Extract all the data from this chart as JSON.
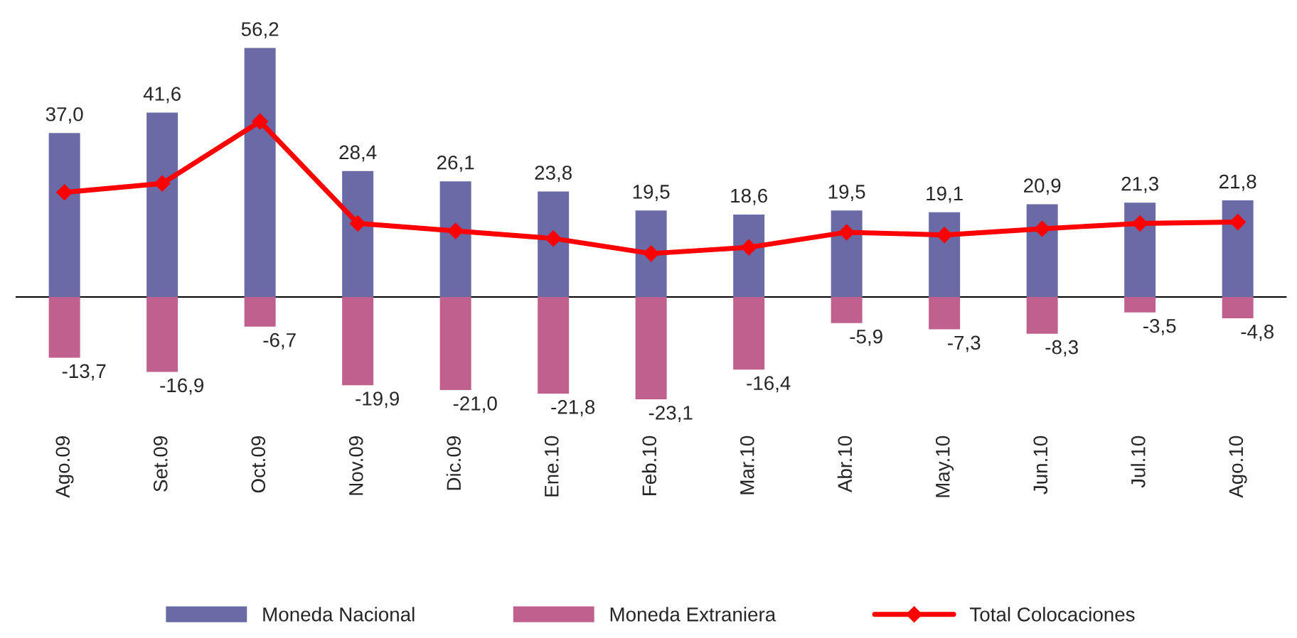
{
  "chart_data": {
    "type": "bar",
    "categories": [
      "Ago.09",
      "Set.09",
      "Oct.09",
      "Nov.09",
      "Dic.09",
      "Ene.10",
      "Feb.10",
      "Mar.10",
      "Abr.10",
      "May.10",
      "Jun.10",
      "Jul.10",
      "Ago.10"
    ],
    "series": [
      {
        "name": "Moneda Nacional",
        "color": "#6a6aa6",
        "values": [
          37.0,
          41.6,
          56.2,
          28.4,
          26.1,
          23.8,
          19.5,
          18.6,
          19.5,
          19.1,
          20.9,
          21.3,
          21.8
        ],
        "value_labels": [
          "37,0",
          "41,6",
          "56,2",
          "28,4",
          "26,1",
          "23,8",
          "19,5",
          "18,6",
          "19,5",
          "19,1",
          "20,9",
          "21,3",
          "21,8"
        ]
      },
      {
        "name": "Moneda Extraniera",
        "color": "#c0608f",
        "values": [
          -13.7,
          -16.9,
          -6.7,
          -19.9,
          -21.0,
          -21.8,
          -23.1,
          -16.4,
          -5.9,
          -7.3,
          -8.3,
          -3.5,
          -4.8
        ],
        "value_labels": [
          "-13,7",
          "-16,9",
          "-6,7",
          "-19,9",
          "-21,0",
          "-21,8",
          "-23,1",
          "-16,4",
          "-5,9",
          "-7,3",
          "-8,3",
          "-3,5",
          "-4,8"
        ]
      },
      {
        "name": "Total Colocaciones",
        "type": "line",
        "color": "#ff0000",
        "values": [
          23.6,
          25.6,
          39.6,
          16.6,
          14.9,
          13.2,
          9.8,
          11.2,
          14.6,
          14.0,
          15.4,
          16.6,
          16.9
        ]
      }
    ],
    "legend": "bottom",
    "marker": "diamond",
    "stacked": true,
    "grid": false,
    "tick_labels": "x"
  }
}
